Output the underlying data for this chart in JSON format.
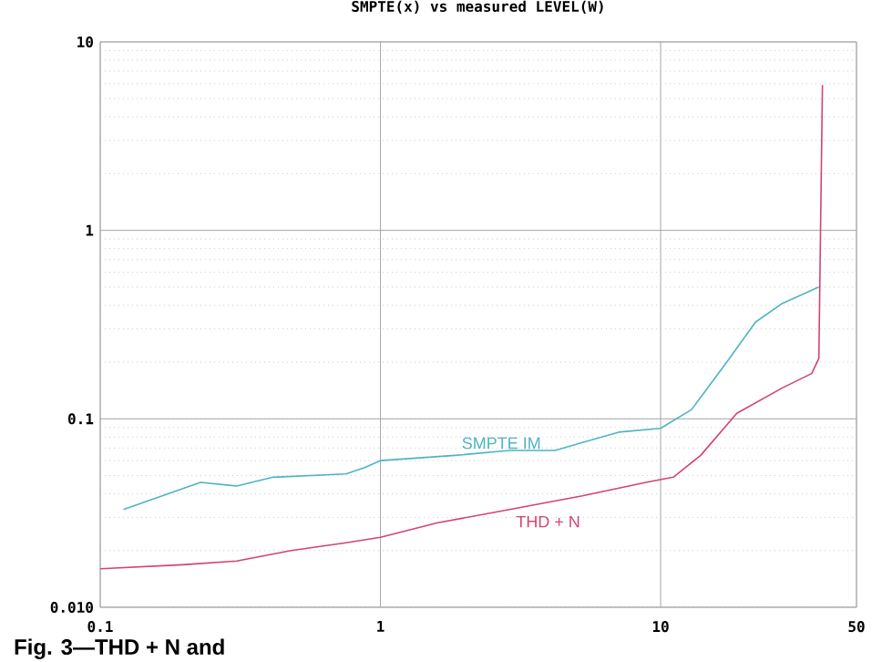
{
  "chart_data": {
    "type": "line",
    "title": "SMPTE(x) vs measured LEVEL(W)",
    "log": "xy",
    "grid": true,
    "marker": "none",
    "line_style": "solid",
    "xlim": [
      0.1,
      50
    ],
    "ylim": [
      0.01,
      10
    ],
    "xticks": [
      0.1,
      1,
      10,
      50
    ],
    "yticks": [
      {
        "value": 0.01,
        "label": "0.010"
      },
      0.1,
      1,
      10
    ],
    "series": [
      {
        "name": "SMPTE IM",
        "color": "#4fb3c4",
        "x": [
          0.121,
          0.228,
          0.307,
          0.414,
          0.753,
          0.875,
          1,
          1.85,
          2.89,
          4.2,
          5.26,
          7.09,
          10,
          12.9,
          17.4,
          21.8,
          27.2,
          36.7
        ],
        "values": [
          0.033,
          0.046,
          0.044,
          0.049,
          0.051,
          0.055,
          0.06,
          0.064,
          0.068,
          0.068,
          0.075,
          0.085,
          0.089,
          0.112,
          0.204,
          0.326,
          0.41,
          0.5
        ]
      },
      {
        "name": "THD + N",
        "color": "#d4436e",
        "x": [
          0.1,
          0.196,
          0.307,
          0.481,
          0.753,
          1,
          1.59,
          2.89,
          5.26,
          8.87,
          11.1,
          13.9,
          18.7,
          27.2,
          34.6,
          36.7,
          37.8
        ],
        "values": [
          0.016,
          0.0168,
          0.0176,
          0.02,
          0.022,
          0.0235,
          0.028,
          0.033,
          0.039,
          0.046,
          0.049,
          0.064,
          0.107,
          0.146,
          0.174,
          0.209,
          5.9
        ]
      }
    ],
    "annotations": [
      "Fig. 3—THD + N and"
    ]
  }
}
